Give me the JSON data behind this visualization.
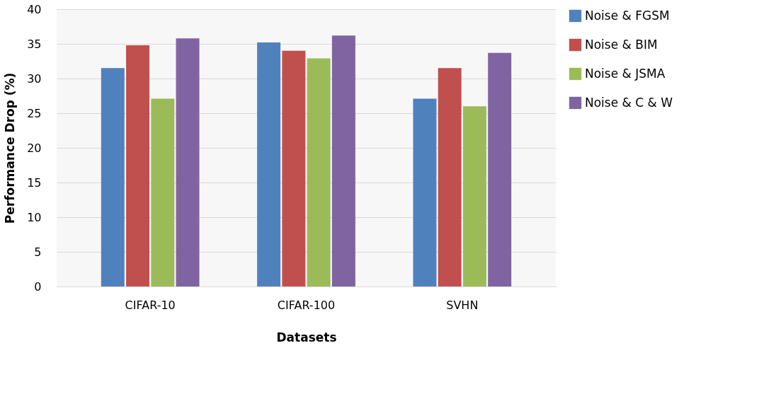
{
  "chart_data": {
    "type": "bar",
    "xlabel": "Datasets",
    "ylabel": "Performance Drop (%)",
    "categories": [
      "CIFAR-10",
      "CIFAR-100",
      "SVHN"
    ],
    "series": [
      {
        "name": "Noise & FGSM",
        "color": "#4f81bd",
        "values": [
          31.5,
          35.2,
          27.1
        ]
      },
      {
        "name": "Noise & BIM",
        "color": "#c0504d",
        "values": [
          34.8,
          34.0,
          31.5
        ]
      },
      {
        "name": "Noise & JSMA",
        "color": "#9bbb59",
        "values": [
          27.1,
          32.9,
          26.0
        ]
      },
      {
        "name": "Noise & C & W",
        "color": "#8064a2",
        "values": [
          35.8,
          36.2,
          33.7
        ]
      }
    ],
    "ylim": [
      0,
      40
    ],
    "yticks": [
      0,
      5,
      10,
      15,
      20,
      25,
      30,
      35,
      40
    ],
    "grid": "y",
    "legend": "right"
  }
}
